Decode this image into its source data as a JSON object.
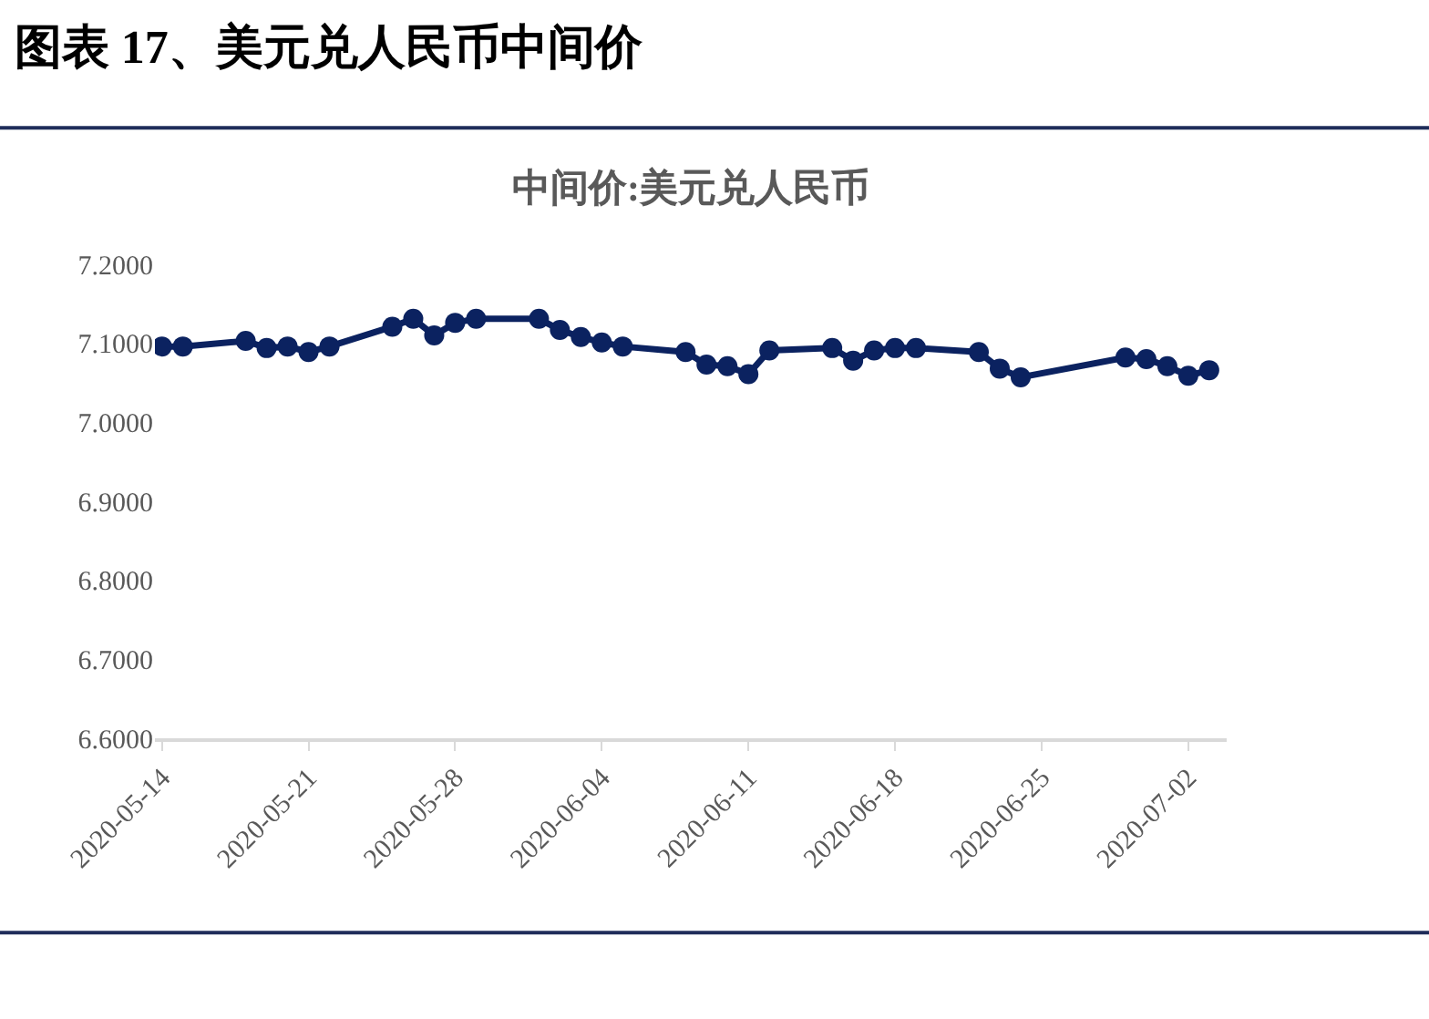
{
  "chart_data": {
    "type": "line",
    "title": "图表 17、美元兑人民币中间价",
    "subtitle": "中间价:美元兑人民币",
    "x": [
      "2020-05-14",
      "2020-05-15",
      "2020-05-18",
      "2020-05-19",
      "2020-05-20",
      "2020-05-21",
      "2020-05-22",
      "2020-05-25",
      "2020-05-26",
      "2020-05-27",
      "2020-05-28",
      "2020-05-29",
      "2020-06-01",
      "2020-06-02",
      "2020-06-03",
      "2020-06-04",
      "2020-06-05",
      "2020-06-08",
      "2020-06-09",
      "2020-06-10",
      "2020-06-11",
      "2020-06-12",
      "2020-06-15",
      "2020-06-16",
      "2020-06-17",
      "2020-06-18",
      "2020-06-19",
      "2020-06-22",
      "2020-06-23",
      "2020-06-24",
      "2020-06-29",
      "2020-06-30",
      "2020-07-01",
      "2020-07-02",
      "2020-07-03"
    ],
    "series": [
      {
        "color": "#0b2260",
        "values": [
          7.096,
          7.096,
          7.103,
          7.094,
          7.096,
          7.089,
          7.096,
          7.121,
          7.131,
          7.11,
          7.126,
          7.131,
          7.131,
          7.117,
          7.108,
          7.101,
          7.096,
          7.089,
          7.073,
          7.071,
          7.061,
          7.091,
          7.094,
          7.078,
          7.091,
          7.094,
          7.094,
          7.089,
          7.068,
          7.057,
          7.082,
          7.08,
          7.071,
          7.059,
          7.066
        ]
      }
    ],
    "xlim": [
      "2020-05-13T16:00",
      "2020-07-03T20:00"
    ],
    "xticks": [
      "2020-05-14",
      "2020-05-21",
      "2020-05-28",
      "2020-06-04",
      "2020-06-11",
      "2020-06-18",
      "2020-06-25",
      "2020-07-02"
    ],
    "ylim": [
      6.6,
      7.2
    ],
    "yticks": [
      {
        "value": 6.6,
        "label": "6.6000"
      },
      {
        "value": 6.7,
        "label": "6.7000"
      },
      {
        "value": 6.8,
        "label": "6.8000"
      },
      {
        "value": 6.9,
        "label": "6.9000"
      },
      {
        "value": 7.0,
        "label": "7.0000"
      },
      {
        "value": 7.1,
        "label": "7.1000"
      },
      {
        "value": 7.2,
        "label": "7.2000"
      }
    ],
    "grid": false,
    "marker": "circle",
    "line_style": "solid"
  }
}
